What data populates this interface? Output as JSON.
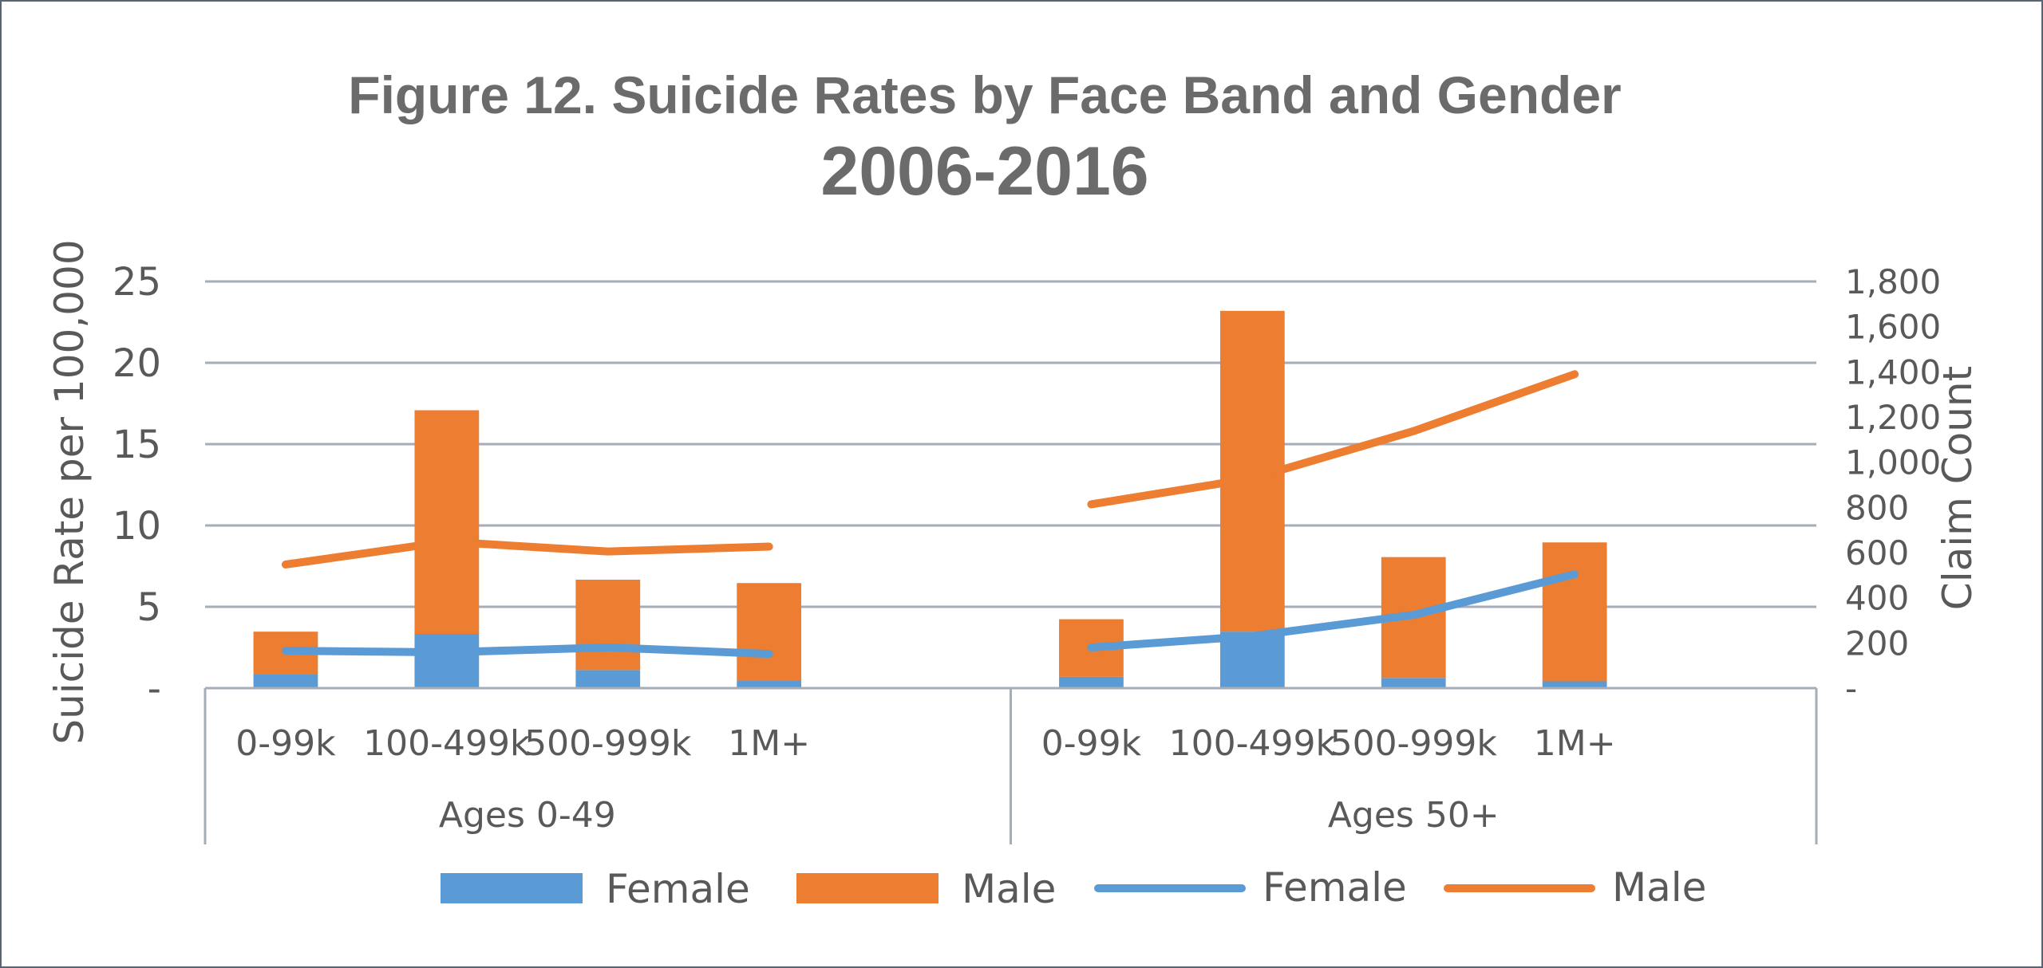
{
  "chart_data": {
    "type": "bar",
    "title": "Figure 12. Suicide Rates by Face Band and Gender",
    "subtitle": "2006-2016",
    "ylabel": "Suicide Rate per 100,000",
    "y2label": "Claim Count",
    "ylim": [
      0,
      25
    ],
    "y2lim": [
      0,
      1800
    ],
    "yticks": [
      "-",
      "5",
      "10",
      "15",
      "20",
      "25"
    ],
    "y2ticks": [
      "-",
      "200",
      "400",
      "600",
      "800",
      "1,000",
      "1,200",
      "1,400",
      "1,600",
      "1,800"
    ],
    "groups": [
      {
        "label": "Ages 0-49",
        "categories": [
          "0-99k",
          "100-499k",
          "500-999k",
          "1M+"
        ]
      },
      {
        "label": "Ages 50+",
        "categories": [
          "0-99k",
          "100-499k",
          "500-999k",
          "1M+"
        ]
      }
    ],
    "bar_series": [
      {
        "name": "Female",
        "axis": "claim_count",
        "stacked": true,
        "color": "#5b9bd5",
        "values": [
          [
            60,
            240,
            80,
            35
          ],
          [
            50,
            250,
            45,
            30
          ]
        ]
      },
      {
        "name": "Male",
        "axis": "claim_count",
        "stacked": true,
        "color": "#ed7d31",
        "values": [
          [
            190,
            990,
            400,
            430
          ],
          [
            255,
            1420,
            535,
            615
          ]
        ]
      }
    ],
    "line_series": [
      {
        "name": "Female",
        "axis": "suicide_rate",
        "color": "#5b9bd5",
        "values": [
          [
            2.3,
            2.2,
            2.5,
            2.1
          ],
          [
            2.5,
            3.2,
            4.5,
            7.0
          ]
        ]
      },
      {
        "name": "Male",
        "axis": "suicide_rate",
        "color": "#ed7d31",
        "values": [
          [
            7.6,
            9.0,
            8.4,
            8.7
          ],
          [
            11.3,
            12.9,
            15.8,
            19.3
          ]
        ]
      }
    ],
    "legend": {
      "position": "bottom",
      "entries": [
        "Female",
        "Male",
        "Female",
        "Male"
      ]
    },
    "grid": true
  }
}
